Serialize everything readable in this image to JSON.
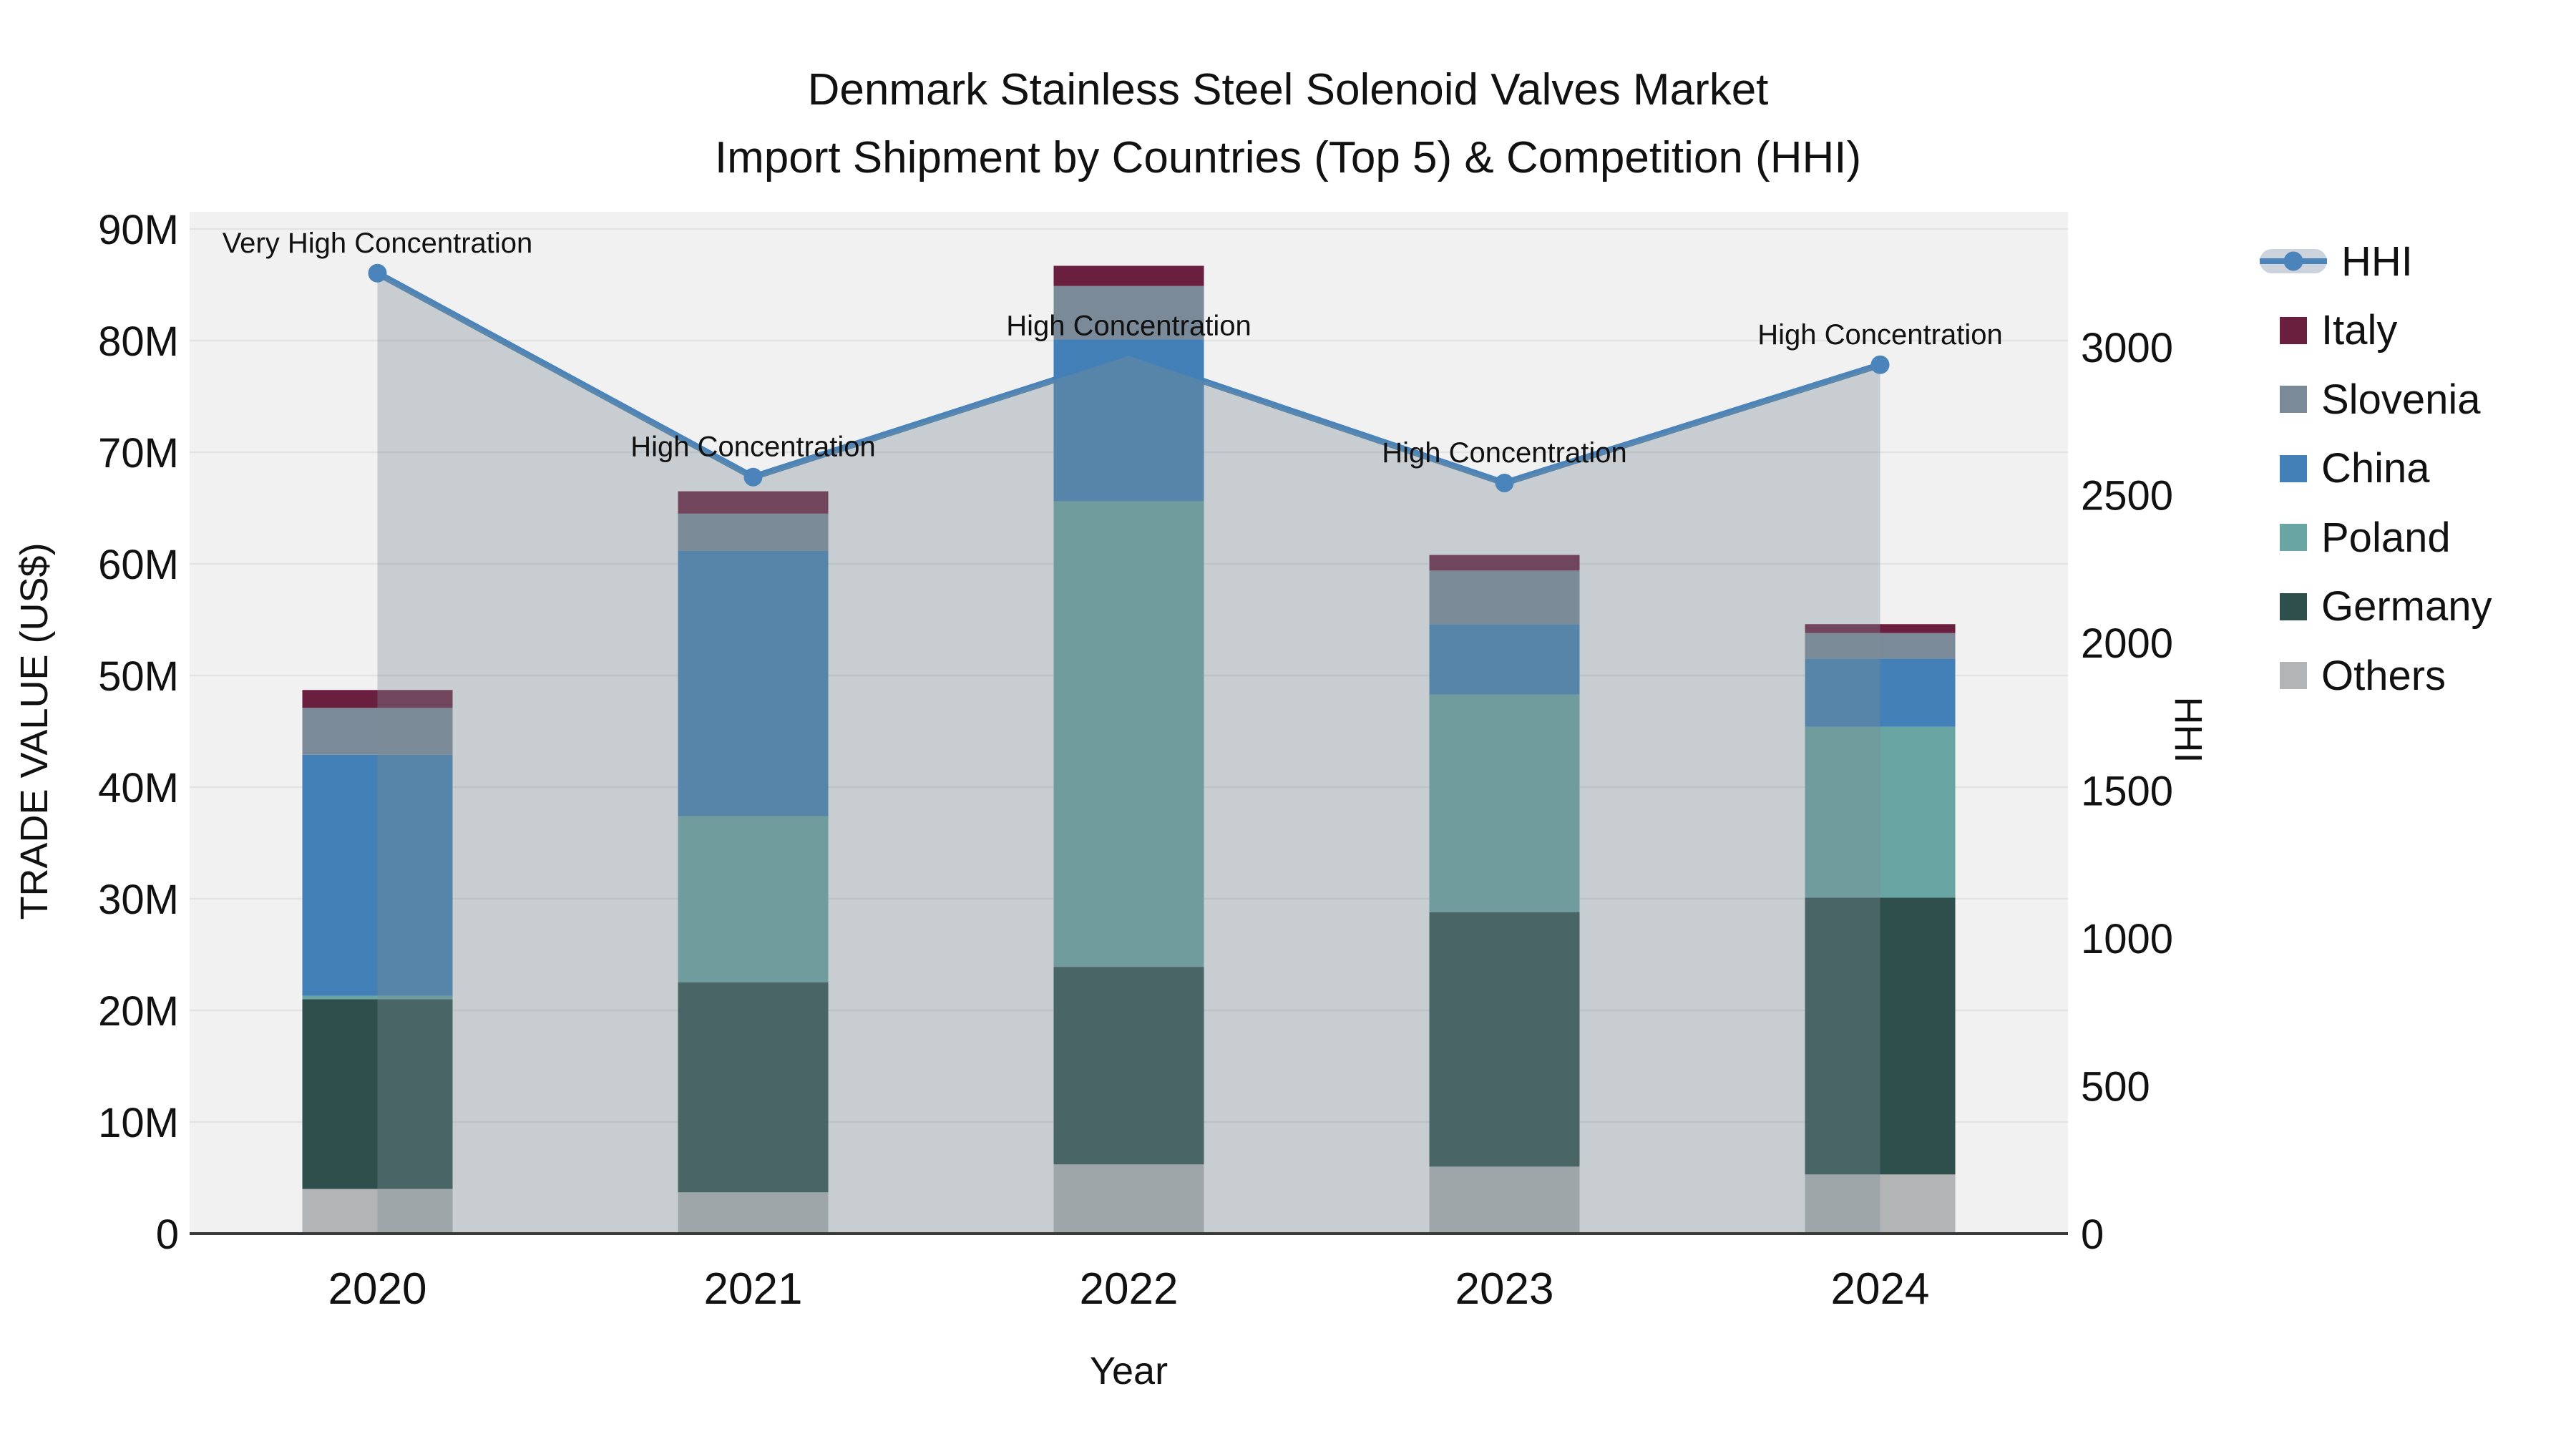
{
  "chart_data": {
    "type": "bar+line",
    "title": "Denmark Stainless Steel Solenoid Valves Market",
    "subtitle": "Import Shipment by Countries (Top 5) & Competition (HHI)",
    "xlabel": "Year",
    "ylabel_left": "TRADE VALUE (US$)",
    "ylabel_right": "HHI",
    "categories": [
      "2020",
      "2021",
      "2022",
      "2023",
      "2024"
    ],
    "values_unit": "M US$",
    "stack_order_bottom_to_top": [
      "Others",
      "Germany",
      "Poland",
      "China",
      "Slovenia",
      "Italy"
    ],
    "series": [
      {
        "name": "Italy",
        "color": "#6b1f3e",
        "values": [
          1.6,
          2.0,
          1.8,
          1.4,
          0.8
        ]
      },
      {
        "name": "Slovenia",
        "color": "#7a8a99",
        "values": [
          4.2,
          3.3,
          4.8,
          4.8,
          2.3
        ]
      },
      {
        "name": "China",
        "color": "#4380b8",
        "values": [
          21.6,
          23.8,
          14.5,
          6.3,
          6.1
        ]
      },
      {
        "name": "Poland",
        "color": "#69a5a3",
        "values": [
          0.3,
          14.9,
          41.7,
          19.5,
          15.3
        ]
      },
      {
        "name": "Germany",
        "color": "#2e4f4c",
        "values": [
          17.0,
          18.8,
          17.7,
          22.8,
          24.8
        ]
      },
      {
        "name": "Others",
        "color": "#b3b4b6",
        "values": [
          4.0,
          3.7,
          6.2,
          6.0,
          5.3
        ]
      }
    ],
    "bar_totals": [
      48.7,
      66.5,
      86.7,
      60.8,
      54.6
    ],
    "line_series": {
      "name": "HHI",
      "color": "#4a84ba",
      "area_fill_color": "rgba(125,140,146,0.36)",
      "values": [
        3250,
        2560,
        2970,
        2540,
        2940
      ]
    },
    "annotations": [
      "Very High Concentration",
      "High Concentration",
      "High Concentration",
      "High Concentration",
      "High Concentration"
    ],
    "y_left": {
      "range": [
        0,
        90
      ],
      "ticks": [
        0,
        10,
        20,
        30,
        40,
        50,
        60,
        70,
        80,
        90
      ],
      "tick_labels": [
        "0",
        "10M",
        "20M",
        "30M",
        "40M",
        "50M",
        "60M",
        "70M",
        "80M",
        "90M"
      ]
    },
    "y_right": {
      "range": [
        0,
        3000
      ],
      "ticks": [
        0,
        500,
        1000,
        1500,
        2000,
        2500,
        3000
      ],
      "tick_labels": [
        "0",
        "500",
        "1000",
        "1500",
        "2000",
        "2500",
        "3000"
      ]
    },
    "legend": [
      "HHI",
      "Italy",
      "Slovenia",
      "China",
      "Poland",
      "Germany",
      "Others"
    ],
    "colors": {
      "plot_bg": "#f1f1f2",
      "grid": "#e3e3e3",
      "axis_line": "#3a3a3a",
      "text": "#111111",
      "legend_hhi_band": "#cdd3dd"
    }
  }
}
